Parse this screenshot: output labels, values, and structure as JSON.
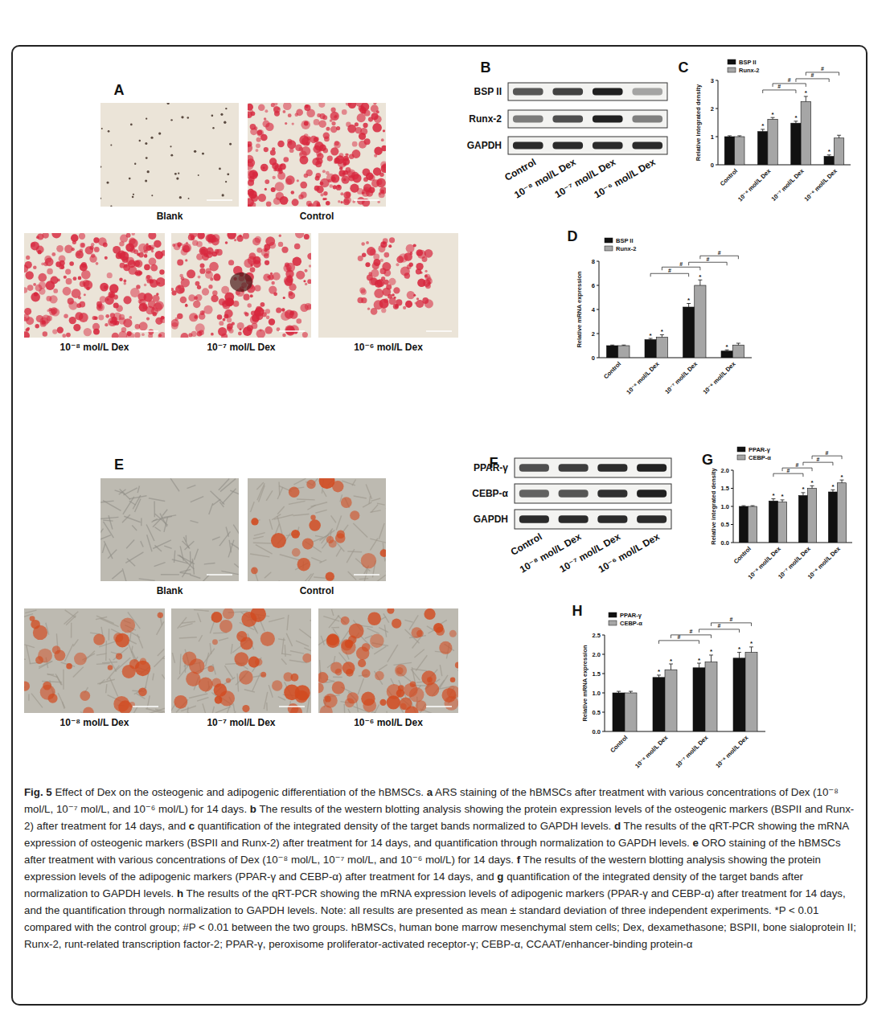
{
  "stains": [
    {
      "label": "A",
      "images": [
        "Blank",
        "Control",
        "10⁻⁸ mol/L Dex",
        "10⁻⁷ mol/L Dex",
        "10⁻⁶ mol/L Dex"
      ]
    },
    {
      "label": "E",
      "images": [
        "Blank",
        "Control",
        "10⁻⁸ mol/L Dex",
        "10⁻⁷ mol/L Dex",
        "10⁻⁶ mol/L Dex"
      ]
    }
  ],
  "blots": [
    {
      "label": "B",
      "rows": [
        "BSP II",
        "Runx-2",
        "GAPDH"
      ],
      "lanes": [
        "Control",
        "10⁻⁸ mol/L Dex",
        "10⁻⁷ mol/L Dex",
        "10⁻⁶ mol/L Dex"
      ]
    },
    {
      "label": "F",
      "rows": [
        "PPAR-γ",
        "CEBP-α",
        "GAPDH"
      ],
      "lanes": [
        "Control",
        "10⁻⁸ mol/L Dex",
        "10⁻⁷ mol/L Dex",
        "10⁻⁶ mol/L Dex"
      ]
    }
  ],
  "chart_data": [
    {
      "label": "C",
      "type": "bar",
      "ylabel": "Relative integrated density",
      "categories": [
        "Control",
        "10⁻⁸ mol/L Dex",
        "10⁻⁷ mol/L Dex",
        "10⁻⁶ mol/L Dex"
      ],
      "ylim": [
        0,
        3
      ],
      "yticks": [
        0,
        1,
        2,
        3
      ],
      "legend": "upper left",
      "series": [
        {
          "name": "BSP II",
          "color": "#111111",
          "values": [
            1.0,
            1.18,
            1.48,
            0.3
          ],
          "errors": [
            0.03,
            0.08,
            0.07,
            0.05
          ],
          "significance": [
            null,
            "*",
            "*",
            "*"
          ]
        },
        {
          "name": "Runx-2",
          "color": "#a6a6a6",
          "values": [
            1.0,
            1.62,
            2.25,
            0.95
          ],
          "errors": [
            0.03,
            0.06,
            0.18,
            0.1
          ],
          "significance": [
            null,
            "*",
            "*",
            null
          ]
        }
      ],
      "brackets": [
        {
          "text": "#",
          "series": "BSP II",
          "between": [
            "10⁻⁸ mol/L Dex",
            "10⁻⁷ mol/L Dex"
          ]
        },
        {
          "text": "#",
          "series": "Runx-2",
          "between": [
            "10⁻⁸ mol/L Dex",
            "10⁻⁷ mol/L Dex"
          ]
        },
        {
          "text": "#",
          "series": "BSP II",
          "between": [
            "10⁻⁷ mol/L Dex",
            "10⁻⁶ mol/L Dex"
          ]
        },
        {
          "text": "#",
          "series": "Runx-2",
          "between": [
            "10⁻⁷ mol/L Dex",
            "10⁻⁶ mol/L Dex"
          ]
        }
      ]
    },
    {
      "label": "D",
      "type": "bar",
      "ylabel": "Relative mRNA expression",
      "categories": [
        "Control",
        "10⁻⁸ mol/L Dex",
        "10⁻⁷ mol/L Dex",
        "10⁻⁶ mol/L Dex"
      ],
      "ylim": [
        0,
        8
      ],
      "yticks": [
        0,
        2,
        4,
        6,
        8
      ],
      "legend": "upper left",
      "series": [
        {
          "name": "BSP II",
          "color": "#111111",
          "values": [
            1.0,
            1.5,
            4.2,
            0.55
          ],
          "errors": [
            0.05,
            0.1,
            0.3,
            0.1
          ],
          "significance": [
            null,
            "*",
            "*",
            "*"
          ]
        },
        {
          "name": "Runx-2",
          "color": "#a6a6a6",
          "values": [
            1.0,
            1.7,
            6.0,
            1.05
          ],
          "errors": [
            0.05,
            0.2,
            0.45,
            0.15
          ],
          "significance": [
            null,
            "*",
            "*",
            null
          ]
        }
      ],
      "brackets": [
        {
          "text": "#",
          "series": "BSP II",
          "between": [
            "10⁻⁸ mol/L Dex",
            "10⁻⁷ mol/L Dex"
          ]
        },
        {
          "text": "#",
          "series": "Runx-2",
          "between": [
            "10⁻⁸ mol/L Dex",
            "10⁻⁷ mol/L Dex"
          ]
        },
        {
          "text": "#",
          "series": "BSP II",
          "between": [
            "10⁻⁷ mol/L Dex",
            "10⁻⁶ mol/L Dex"
          ]
        },
        {
          "text": "#",
          "series": "Runx-2",
          "between": [
            "10⁻⁷ mol/L Dex",
            "10⁻⁶ mol/L Dex"
          ]
        }
      ]
    },
    {
      "label": "G",
      "type": "bar",
      "ylabel": "Relative integrated density",
      "categories": [
        "Control",
        "10⁻⁸ mol/L Dex",
        "10⁻⁷ mol/L Dex",
        "10⁻⁶ mol/L Dex"
      ],
      "ylim": [
        0,
        2
      ],
      "yticks": [
        {
          "value": 0,
          "label": "0.0"
        },
        0.5,
        {
          "value": 1,
          "label": "1.0"
        },
        1.5,
        {
          "value": 2,
          "label": "2.0"
        }
      ],
      "legend": "upper left",
      "series": [
        {
          "name": "PPAR-γ",
          "color": "#111111",
          "values": [
            1.0,
            1.15,
            1.3,
            1.4
          ],
          "errors": [
            0.02,
            0.06,
            0.08,
            0.06
          ],
          "significance": [
            null,
            "*",
            "*",
            "*"
          ]
        },
        {
          "name": "CEBP-α",
          "color": "#a6a6a6",
          "values": [
            1.0,
            1.12,
            1.5,
            1.65
          ],
          "errors": [
            0.02,
            0.06,
            0.07,
            0.08
          ],
          "significance": [
            null,
            "*",
            "*",
            "*"
          ]
        }
      ],
      "brackets": [
        {
          "text": "#",
          "series": "PPAR-γ",
          "between": [
            "10⁻⁸ mol/L Dex",
            "10⁻⁷ mol/L Dex"
          ]
        },
        {
          "text": "#",
          "series": "CEBP-α",
          "between": [
            "10⁻⁸ mol/L Dex",
            "10⁻⁷ mol/L Dex"
          ]
        },
        {
          "text": "#",
          "series": "PPAR-γ",
          "between": [
            "10⁻⁷ mol/L Dex",
            "10⁻⁶ mol/L Dex"
          ]
        },
        {
          "text": "#",
          "series": "CEBP-α",
          "between": [
            "10⁻⁷ mol/L Dex",
            "10⁻⁶ mol/L Dex"
          ]
        }
      ]
    },
    {
      "label": "H",
      "type": "bar",
      "ylabel": "Relative mRNA expression",
      "categories": [
        "Control",
        "10⁻⁸ mol/L Dex",
        "10⁻⁷ mol/L Dex",
        "10⁻⁶ mol/L Dex"
      ],
      "ylim": [
        0,
        2.5
      ],
      "yticks": [
        {
          "value": 0,
          "label": "0.0"
        },
        0.5,
        {
          "value": 1,
          "label": "1.0"
        },
        1.5,
        {
          "value": 2,
          "label": "2.0"
        },
        2.5
      ],
      "legend": "upper left",
      "series": [
        {
          "name": "PPAR-γ",
          "color": "#111111",
          "values": [
            1.0,
            1.4,
            1.65,
            1.9
          ],
          "errors": [
            0.04,
            0.06,
            0.12,
            0.15
          ],
          "significance": [
            null,
            "*",
            "*",
            "*"
          ]
        },
        {
          "name": "CEBP-α",
          "color": "#a6a6a6",
          "values": [
            1.0,
            1.6,
            1.8,
            2.05
          ],
          "errors": [
            0.04,
            0.15,
            0.18,
            0.14
          ],
          "significance": [
            null,
            "*",
            "*",
            "*"
          ]
        }
      ],
      "brackets": [
        {
          "text": "#",
          "series": "PPAR-γ",
          "between": [
            "10⁻⁸ mol/L Dex",
            "10⁻⁷ mol/L Dex"
          ]
        },
        {
          "text": "#",
          "series": "CEBP-α",
          "between": [
            "10⁻⁸ mol/L Dex",
            "10⁻⁷ mol/L Dex"
          ]
        },
        {
          "text": "#",
          "series": "PPAR-γ",
          "between": [
            "10⁻⁷ mol/L Dex",
            "10⁻⁶ mol/L Dex"
          ]
        },
        {
          "text": "#",
          "series": "CEBP-α",
          "between": [
            "10⁻⁷ mol/L Dex",
            "10⁻⁶ mol/L Dex"
          ]
        }
      ]
    }
  ],
  "caption": {
    "title": "Fig. 5",
    "intro": "Effect of Dex on the osteogenic and adipogenic differentiation of the hBMSCs.",
    "parts": [
      {
        "letter": "a",
        "text": "ARS staining of the hBMSCs after treatment with various concentrations of Dex (10⁻⁸ mol/L, 10⁻⁷ mol/L, and 10⁻⁶ mol/L) for 14 days."
      },
      {
        "letter": "b",
        "text": "The results of the western blotting analysis showing the protein expression levels of the osteogenic markers (BSPII and Runx-2) after treatment for 14 days, and"
      },
      {
        "letter": "c",
        "text": "quantification of the integrated density of the target bands normalized to GAPDH levels."
      },
      {
        "letter": "d",
        "text": "The results of the qRT-PCR showing the mRNA expression of osteogenic markers (BSPII and Runx-2) after treatment for 14 days, and quantification through normalization to GAPDH levels."
      },
      {
        "letter": "e",
        "text": "ORO staining of the hBMSCs after treatment with various concentrations of Dex (10⁻⁸ mol/L, 10⁻⁷ mol/L, and 10⁻⁶ mol/L) for 14 days."
      },
      {
        "letter": "f",
        "text": "The results of the western blotting analysis showing the protein expression levels of the adipogenic markers (PPAR-γ and CEBP-α) after treatment for 14 days, and"
      },
      {
        "letter": "g",
        "text": "quantification of the integrated density of the target bands after normalization to GAPDH levels."
      },
      {
        "letter": "h",
        "text": "The results of the qRT-PCR showing the mRNA expression levels of adipogenic markers (PPAR-γ and CEBP-α) after treatment for 14 days, and the quantification through normalization to GAPDH levels."
      }
    ],
    "note": "Note: all results are presented as mean ± standard deviation of three independent experiments. *P < 0.01 compared with the control group; #P < 0.01 between the two groups. hBMSCs, human bone marrow mesenchymal stem cells; Dex, dexamethasone; BSPII, bone sialoprotein II; Runx-2, runt-related transcription factor-2; PPAR-γ, peroxisome proliferator-activated receptor-γ; CEBP-α, CCAAT/enhancer-binding protein-α"
  }
}
